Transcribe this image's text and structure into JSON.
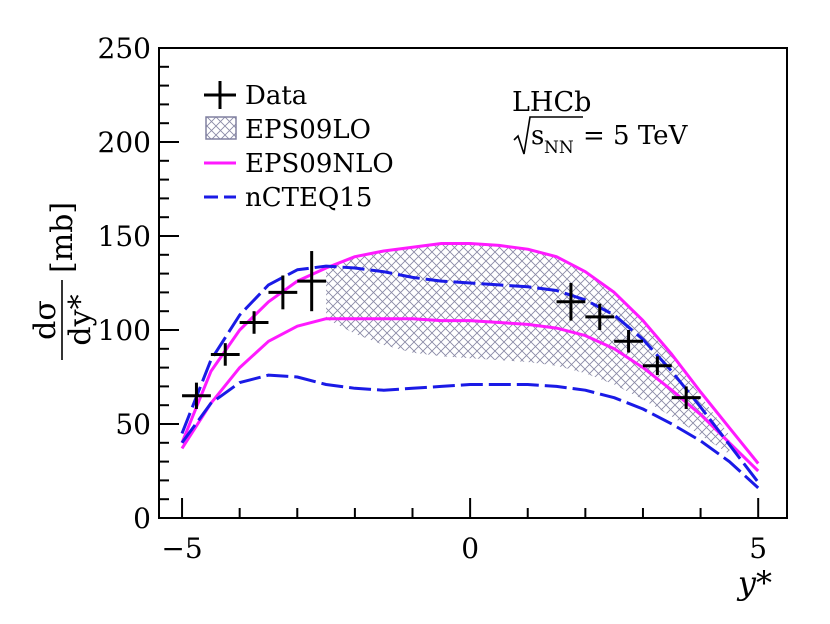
{
  "chart_data": {
    "type": "line",
    "title": "",
    "xlabel": "y*",
    "ylabel": {
      "numerator": "dσ",
      "denominator": "dy*",
      "unit": "[mb]"
    },
    "xlim": [
      -5.4,
      5.5
    ],
    "ylim": [
      0,
      250
    ],
    "xticks": [
      -5,
      0,
      5
    ],
    "xtick_labels": [
      "−5",
      "0",
      "5"
    ],
    "yticks": [
      0,
      50,
      100,
      150,
      200,
      250
    ],
    "ytick_labels": [
      "0",
      "50",
      "100",
      "150",
      "200",
      "250"
    ],
    "annotation": {
      "experiment": "LHCb",
      "energy_label": "s",
      "energy_sub": "NN",
      "energy_value": " = 5 TeV"
    },
    "legend": {
      "position": "top-left",
      "entries": [
        {
          "key": "data",
          "label": "Data"
        },
        {
          "key": "eps09lo",
          "label": "EPS09LO"
        },
        {
          "key": "eps09nlo",
          "label": "EPS09NLO"
        },
        {
          "key": "ncteq15",
          "label": "nCTEQ15"
        }
      ]
    },
    "colors": {
      "data": "#000000",
      "eps09lo_hatch": "#8a8aa6",
      "eps09lo_edge": "#8080a0",
      "eps09nlo": "#ff1aff",
      "ncteq15": "#1a1ae6"
    },
    "series": [
      {
        "name": "Data",
        "type": "errorbar",
        "x": [
          -4.75,
          -4.25,
          -3.75,
          -3.25,
          -2.75,
          1.75,
          2.25,
          2.75,
          3.25,
          3.75
        ],
        "y": [
          65,
          87,
          104,
          120,
          126,
          115,
          107,
          94,
          81,
          64
        ],
        "xerr": [
          0.25,
          0.25,
          0.25,
          0.25,
          0.25,
          0.25,
          0.25,
          0.25,
          0.25,
          0.25
        ],
        "yerr": [
          7,
          6,
          6,
          9,
          16,
          10,
          7,
          6,
          5,
          6
        ]
      },
      {
        "name": "EPS09LO",
        "type": "band",
        "x": [
          -2.5,
          -2,
          -1.5,
          -1,
          -0.5,
          0,
          0.5,
          1,
          1.5,
          2,
          2.5,
          3,
          3.5,
          4,
          4.5
        ],
        "upper": [
          134,
          139,
          142,
          144,
          146,
          146,
          145,
          143,
          139,
          131,
          120,
          105,
          86,
          65,
          44
        ],
        "lower": [
          106,
          98,
          92,
          88,
          86,
          85,
          84,
          83,
          81,
          77,
          71,
          63,
          54,
          44,
          34
        ]
      },
      {
        "name": "EPS09NLO upper",
        "type": "line",
        "x": [
          -5,
          -4.5,
          -4,
          -3.5,
          -3,
          -2.5,
          -2,
          -1.5,
          -1,
          -0.5,
          0,
          0.5,
          1,
          1.5,
          2,
          2.5,
          3,
          3.5,
          4,
          4.5,
          5
        ],
        "y": [
          40,
          78,
          100,
          115,
          126,
          133,
          139,
          142,
          144,
          146,
          146,
          145,
          143,
          139,
          131,
          120,
          105,
          87,
          67,
          48,
          29
        ]
      },
      {
        "name": "EPS09NLO lower",
        "type": "line",
        "x": [
          -5,
          -4.5,
          -4,
          -3.5,
          -3,
          -2.5,
          -2,
          -1.5,
          -1,
          -0.5,
          0,
          0.5,
          1,
          1.5,
          2,
          2.5,
          3,
          3.5,
          4,
          4.5,
          5
        ],
        "y": [
          37,
          61,
          80,
          94,
          102,
          106,
          106,
          106,
          106,
          105,
          105,
          104,
          103,
          101,
          97,
          90,
          80,
          68,
          55,
          40,
          25
        ]
      },
      {
        "name": "nCTEQ15 upper",
        "type": "line",
        "x": [
          -5,
          -4.5,
          -4,
          -3.5,
          -3,
          -2.5,
          -2,
          -1.5,
          -1,
          -0.5,
          0,
          0.5,
          1,
          1.5,
          2,
          2.5,
          3,
          3.5,
          4,
          4.5,
          5
        ],
        "y": [
          45,
          84,
          108,
          124,
          132,
          134,
          133,
          131,
          128,
          126,
          125,
          124,
          123,
          121,
          116,
          108,
          95,
          78,
          59,
          39,
          19
        ]
      },
      {
        "name": "nCTEQ15 lower",
        "type": "line",
        "x": [
          -5,
          -4.5,
          -4,
          -3.5,
          -3,
          -2.5,
          -2,
          -1.5,
          -1,
          -0.5,
          0,
          0.5,
          1,
          1.5,
          2,
          2.5,
          3,
          3.5,
          4,
          4.5,
          5
        ],
        "y": [
          40,
          61,
          72,
          76,
          75,
          71,
          69,
          68,
          69,
          70,
          71,
          71,
          71,
          70,
          68,
          64,
          58,
          50,
          41,
          30,
          16
        ]
      }
    ]
  }
}
